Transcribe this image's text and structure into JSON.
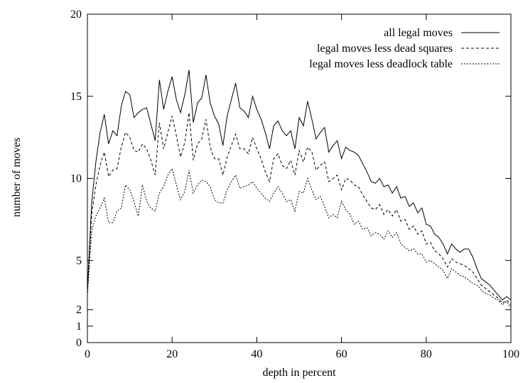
{
  "chart_data": {
    "type": "line",
    "title": "",
    "xlabel": "depth in percent",
    "ylabel": "number of moves",
    "xlim": [
      0,
      100
    ],
    "ylim": [
      0,
      20
    ],
    "x_ticks": [
      "0",
      "20",
      "40",
      "60",
      "80",
      "100"
    ],
    "x_tick_values": [
      0,
      20,
      40,
      60,
      80,
      100
    ],
    "y_ticks": [
      "0",
      "1",
      "2",
      "5",
      "10",
      "15",
      "20"
    ],
    "y_tick_values": [
      0,
      1,
      2,
      5,
      10,
      15,
      20
    ],
    "legend_position": "top-right",
    "grid": false,
    "x": [
      0,
      1,
      2,
      3,
      4,
      5,
      6,
      7,
      8,
      9,
      10,
      11,
      12,
      13,
      14,
      15,
      16,
      17,
      18,
      19,
      20,
      21,
      22,
      23,
      24,
      25,
      26,
      27,
      28,
      29,
      30,
      31,
      32,
      33,
      34,
      35,
      36,
      37,
      38,
      39,
      40,
      41,
      42,
      43,
      44,
      45,
      46,
      47,
      48,
      49,
      50,
      51,
      52,
      53,
      54,
      55,
      56,
      57,
      58,
      59,
      60,
      61,
      62,
      63,
      64,
      65,
      66,
      67,
      68,
      69,
      70,
      71,
      72,
      73,
      74,
      75,
      76,
      77,
      78,
      79,
      80,
      81,
      82,
      83,
      84,
      85,
      86,
      87,
      88,
      89,
      90,
      91,
      92,
      93,
      94,
      95,
      96,
      97,
      98,
      99,
      100
    ],
    "series": [
      {
        "name": "all legal moves",
        "style": "solid",
        "values": [
          3.2,
          8.5,
          11.0,
          12.8,
          13.9,
          12.1,
          12.9,
          12.6,
          14.4,
          15.3,
          15.1,
          13.7,
          14.0,
          14.2,
          14.3,
          13.3,
          12.3,
          16.0,
          14.2,
          15.3,
          16.2,
          14.8,
          14.0,
          15.1,
          16.6,
          13.4,
          14.6,
          14.9,
          16.3,
          14.6,
          13.8,
          13.3,
          12.0,
          13.8,
          14.8,
          15.8,
          14.3,
          14.1,
          13.7,
          15.0,
          14.2,
          13.6,
          12.8,
          11.8,
          13.2,
          13.5,
          12.9,
          12.6,
          12.9,
          11.8,
          13.7,
          13.2,
          14.7,
          13.6,
          12.4,
          12.8,
          13.1,
          11.6,
          12.0,
          12.3,
          11.2,
          11.9,
          11.7,
          11.6,
          11.4,
          10.9,
          10.4,
          9.8,
          9.7,
          10.0,
          9.5,
          9.6,
          9.1,
          9.5,
          8.8,
          8.9,
          8.3,
          8.5,
          7.9,
          8.2,
          7.2,
          7.1,
          6.6,
          6.4,
          6.0,
          5.4,
          6.0,
          5.7,
          5.5,
          5.7,
          5.7,
          5.2,
          4.5,
          3.9,
          3.7,
          3.5,
          3.2,
          2.9,
          2.6,
          2.8,
          2.6
        ]
      },
      {
        "name": "legal moves less dead squares",
        "style": "dashed",
        "values": [
          3.0,
          7.8,
          9.6,
          10.8,
          11.6,
          10.1,
          10.5,
          10.6,
          11.9,
          12.8,
          12.5,
          11.7,
          11.6,
          12.1,
          11.8,
          11.1,
          10.2,
          13.4,
          11.8,
          12.8,
          13.8,
          12.6,
          11.3,
          12.2,
          14.0,
          11.1,
          12.1,
          12.4,
          13.6,
          11.9,
          11.2,
          11.2,
          10.2,
          11.3,
          12.0,
          12.7,
          11.8,
          11.8,
          11.5,
          12.5,
          11.8,
          11.2,
          10.4,
          9.8,
          11.2,
          11.5,
          10.8,
          10.6,
          11.1,
          10.2,
          11.7,
          11.0,
          11.9,
          11.6,
          10.5,
          10.8,
          11.0,
          9.8,
          10.0,
          10.2,
          9.3,
          10.0,
          9.9,
          9.6,
          9.5,
          9.0,
          8.6,
          8.2,
          8.1,
          8.4,
          7.8,
          8.1,
          7.7,
          8.1,
          7.4,
          7.5,
          6.9,
          7.1,
          6.6,
          6.8,
          6.0,
          6.1,
          5.6,
          5.4,
          5.1,
          4.6,
          5.1,
          4.9,
          4.8,
          4.7,
          4.5,
          4.3,
          3.9,
          3.5,
          3.3,
          3.1,
          2.9,
          2.7,
          2.4,
          2.6,
          2.3
        ]
      },
      {
        "name": "legal moves less deadlock table",
        "style": "dotted",
        "values": [
          2.9,
          6.8,
          7.7,
          8.2,
          8.8,
          7.3,
          7.3,
          8.0,
          8.2,
          9.6,
          9.3,
          8.6,
          7.7,
          9.6,
          8.6,
          8.2,
          8.0,
          9.1,
          9.5,
          10.2,
          10.6,
          9.6,
          8.7,
          9.2,
          10.5,
          9.1,
          9.6,
          9.9,
          9.8,
          9.5,
          8.7,
          8.5,
          8.5,
          9.3,
          9.8,
          10.2,
          9.4,
          9.5,
          9.6,
          9.8,
          9.4,
          9.1,
          8.8,
          8.6,
          9.1,
          9.5,
          9.1,
          8.6,
          8.7,
          8.0,
          9.2,
          9.1,
          10.0,
          9.3,
          8.7,
          8.9,
          8.3,
          7.6,
          7.8,
          7.6,
          8.6,
          8.1,
          7.8,
          7.2,
          7.4,
          6.9,
          7.0,
          6.5,
          6.7,
          6.6,
          6.3,
          6.8,
          6.4,
          6.7,
          6.0,
          5.8,
          5.6,
          5.7,
          5.4,
          5.4,
          4.9,
          5.0,
          4.8,
          4.6,
          4.4,
          3.9,
          4.5,
          4.3,
          4.1,
          4.0,
          3.8,
          3.6,
          3.5,
          3.2,
          3.0,
          2.9,
          2.7,
          2.6,
          2.3,
          2.5,
          2.1
        ]
      }
    ]
  }
}
